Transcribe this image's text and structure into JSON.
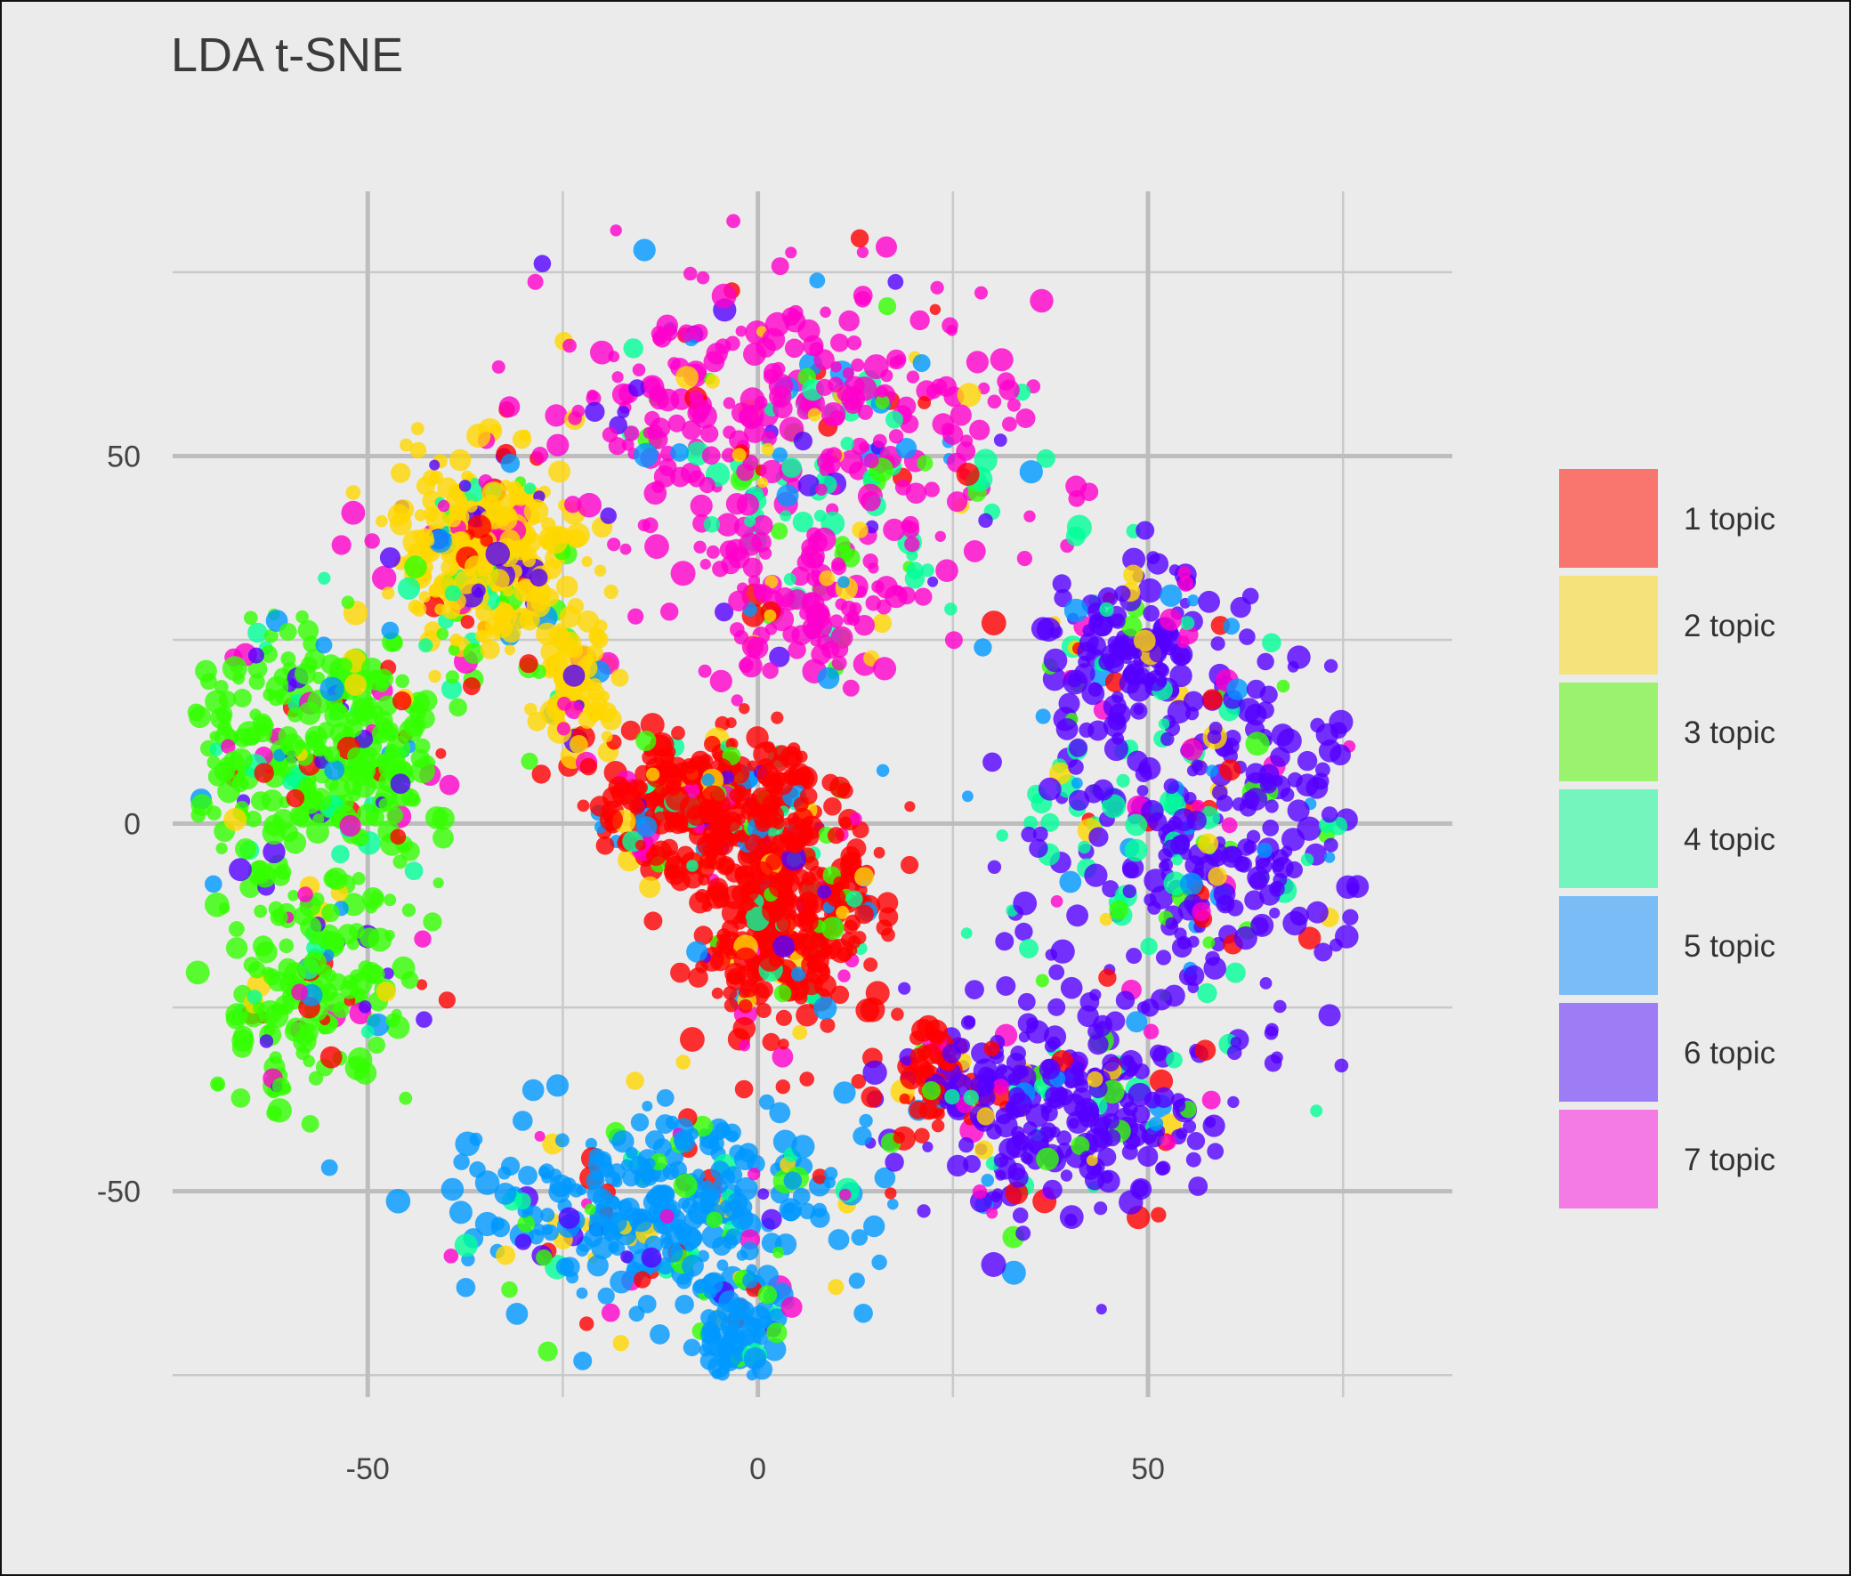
{
  "chart_data": {
    "type": "scatter",
    "title": "LDA t-SNE",
    "xlabel": "",
    "ylabel": "",
    "xlim": [
      -75,
      89
    ],
    "ylim": [
      -78,
      86
    ],
    "x_ticks": [
      -50,
      0,
      50
    ],
    "y_ticks": [
      50,
      0,
      -50
    ],
    "grid": true,
    "legend_position": "right",
    "series": [
      {
        "name": "1 topic",
        "color": "#f8766d",
        "point_color": "#ff0000",
        "clusters": [
          {
            "center": [
              -6,
              3
            ],
            "spread": [
              9,
              6
            ],
            "weight": 1.0
          },
          {
            "center": [
              4,
              -13
            ],
            "spread": [
              8,
              11
            ],
            "weight": 1.0
          },
          {
            "center": [
              22,
              -35
            ],
            "spread": [
              4,
              5
            ],
            "weight": 0.15
          }
        ]
      },
      {
        "name": "2 topic",
        "color": "#f6e27a",
        "point_color": "#ffd700",
        "clusters": [
          {
            "center": [
              -35,
              37
            ],
            "spread": [
              8,
              9
            ],
            "weight": 1.0
          },
          {
            "center": [
              -23,
              19
            ],
            "spread": [
              3,
              6
            ],
            "weight": 0.25
          }
        ]
      },
      {
        "name": "3 topic",
        "color": "#9bf26f",
        "point_color": "#33ff00",
        "clusters": [
          {
            "center": [
              -57,
              10
            ],
            "spread": [
              13,
              12
            ],
            "weight": 1.0
          },
          {
            "center": [
              -57,
              -22
            ],
            "spread": [
              9,
              12
            ],
            "weight": 0.55
          }
        ]
      },
      {
        "name": "4 topic",
        "color": "#74f5bd",
        "point_color": "#00ff99",
        "clusters": [
          {
            "center": [
              10,
              45
            ],
            "spread": [
              20,
              10
            ],
            "weight": 0.18
          },
          {
            "center": [
              45,
              0
            ],
            "spread": [
              12,
              10
            ],
            "weight": 0.12
          }
        ]
      },
      {
        "name": "5 topic",
        "color": "#7abcf6",
        "point_color": "#0099ff",
        "clusters": [
          {
            "center": [
              -12,
              -52
            ],
            "spread": [
              16,
              9
            ],
            "weight": 1.0
          },
          {
            "center": [
              -3,
              -68
            ],
            "spread": [
              4,
              6
            ],
            "weight": 0.25
          }
        ]
      },
      {
        "name": "6 topic",
        "color": "#9d7cf5",
        "point_color": "#5500ff",
        "clusters": [
          {
            "center": [
              58,
              0
            ],
            "spread": [
              15,
              17
            ],
            "weight": 1.0
          },
          {
            "center": [
              40,
              -38
            ],
            "spread": [
              14,
              11
            ],
            "weight": 0.9
          },
          {
            "center": [
              48,
              25
            ],
            "spread": [
              8,
              6
            ],
            "weight": 0.35
          }
        ]
      },
      {
        "name": "7 topic",
        "color": "#f47ae5",
        "point_color": "#ff00cc",
        "clusters": [
          {
            "center": [
              5,
              55
            ],
            "spread": [
              22,
              14
            ],
            "weight": 1.0
          },
          {
            "center": [
              7,
              30
            ],
            "spread": [
              10,
              7
            ],
            "weight": 0.35
          }
        ]
      }
    ]
  }
}
